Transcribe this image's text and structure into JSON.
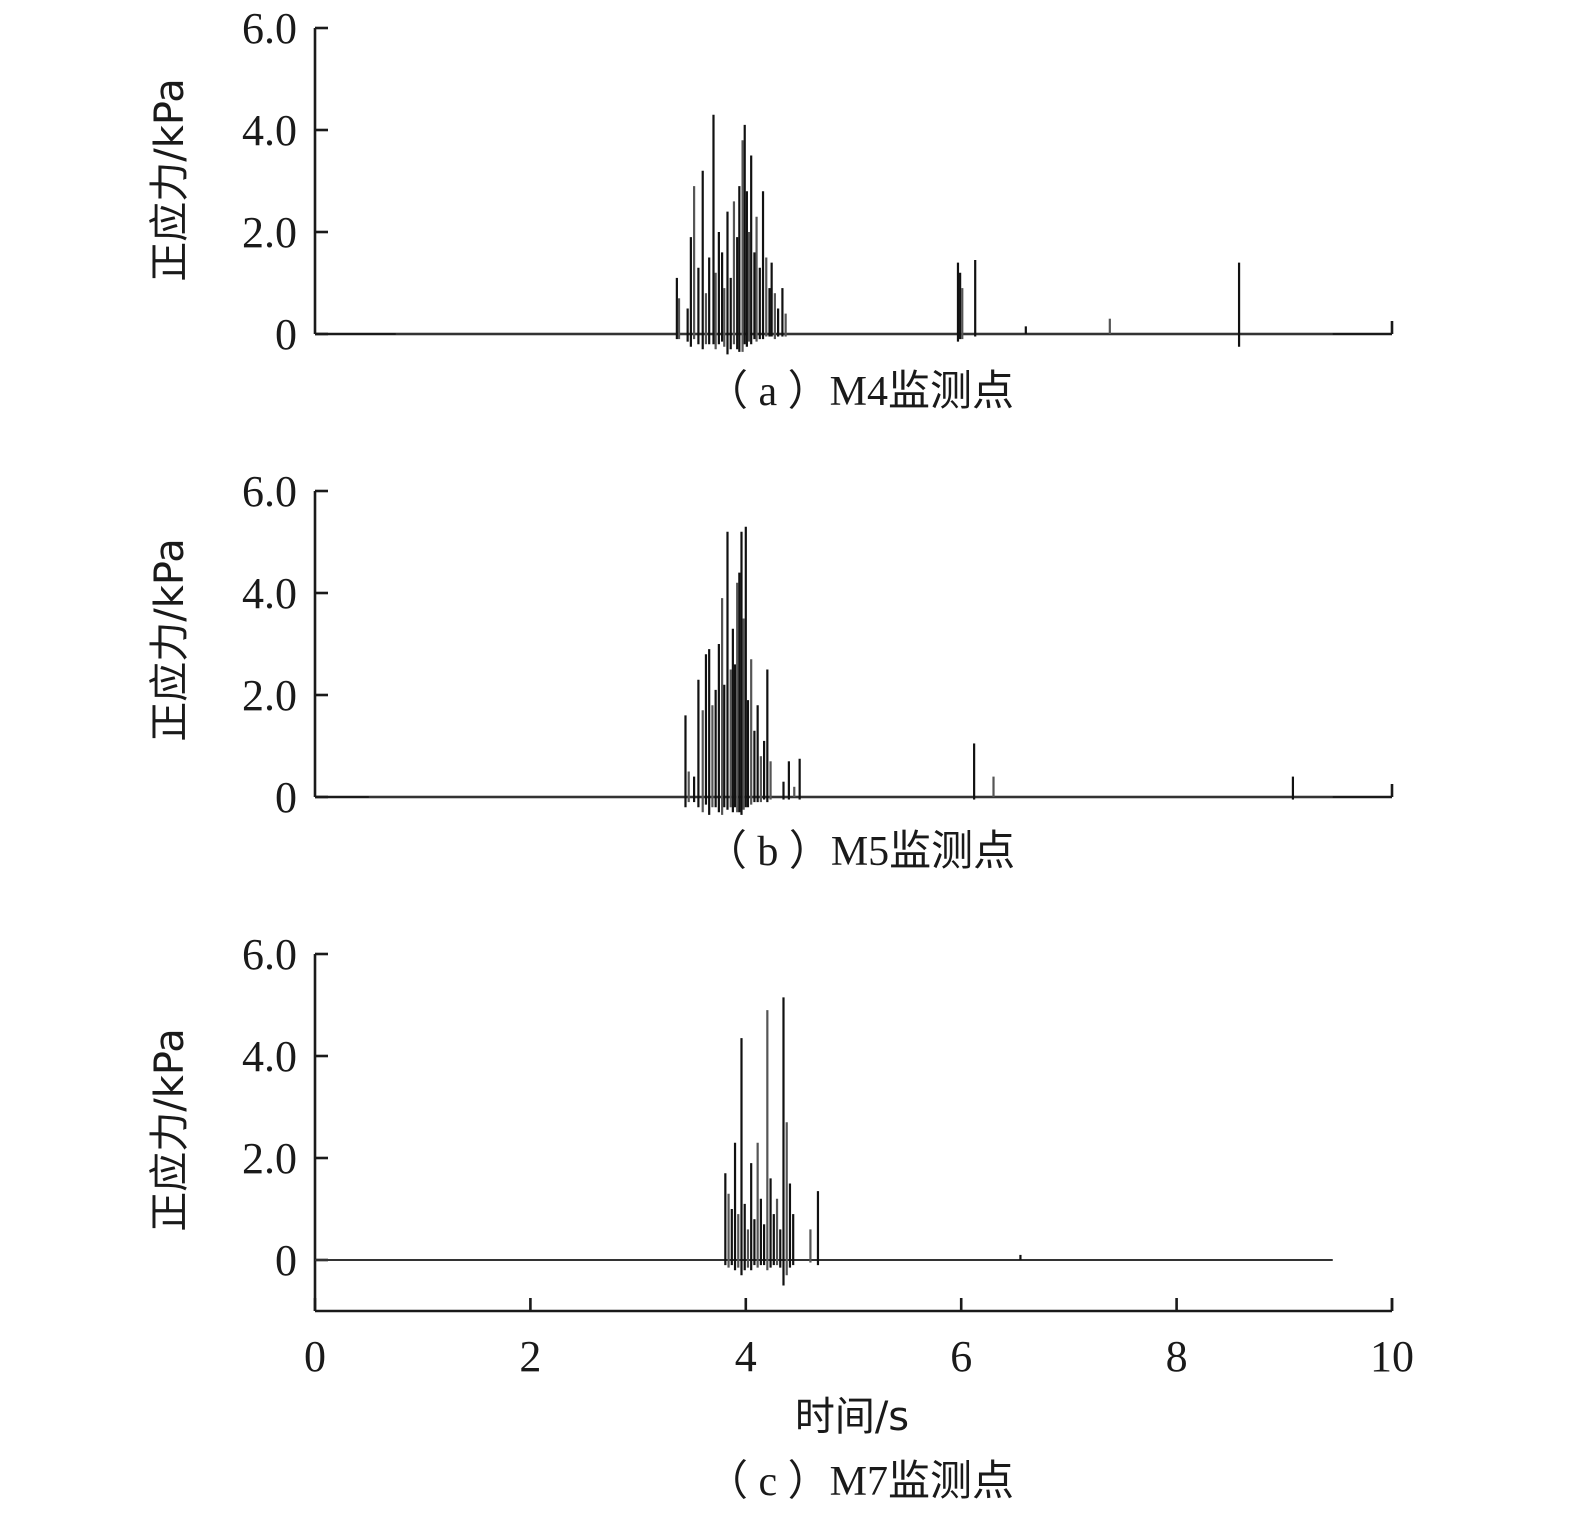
{
  "chart_data": [
    {
      "type": "line",
      "caption": "（ a ）M4监测点",
      "ylabel": "正应力/kPa",
      "xlabel": "",
      "xlim": [
        0,
        10
      ],
      "ylim": [
        0,
        6
      ],
      "yticks": [
        "0",
        "2.0",
        "4.0",
        "6.0"
      ],
      "xticks": [],
      "baseline_x": [
        0.75,
        9.45
      ],
      "grid": false,
      "series": [
        {
          "x": [
            3.36,
            3.38,
            3.46,
            3.49,
            3.52,
            3.56,
            3.6,
            3.63,
            3.66,
            3.7,
            3.72,
            3.75,
            3.78,
            3.8,
            3.83,
            3.86,
            3.89,
            3.92,
            3.94,
            3.97,
            3.99,
            4.01,
            4.03,
            4.05,
            4.08,
            4.1,
            4.13,
            4.16,
            4.19,
            4.22,
            4.24,
            4.27,
            4.3,
            4.34,
            4.37,
            5.97,
            5.99,
            6.01,
            6.13,
            6.6,
            7.38,
            8.58
          ],
          "y": [
            1.1,
            0.7,
            0.5,
            1.9,
            2.9,
            1.3,
            3.2,
            0.8,
            1.5,
            4.3,
            1.2,
            2.0,
            1.6,
            0.9,
            2.4,
            1.1,
            2.6,
            1.9,
            2.9,
            3.8,
            4.1,
            2.8,
            2.0,
            3.5,
            1.6,
            2.3,
            1.3,
            2.8,
            1.5,
            0.9,
            1.4,
            0.8,
            0.5,
            0.9,
            0.4,
            1.4,
            1.2,
            0.9,
            1.45,
            0.15,
            0.3,
            1.4
          ],
          "neg": [
            -0.1,
            -0.1,
            -0.15,
            -0.25,
            -0.1,
            -0.2,
            -0.3,
            -0.2,
            -0.2,
            -0.2,
            -0.3,
            -0.2,
            -0.15,
            -0.25,
            -0.4,
            -0.3,
            -0.2,
            -0.3,
            -0.35,
            -0.35,
            -0.2,
            -0.25,
            -0.15,
            -0.2,
            -0.1,
            -0.15,
            -0.1,
            -0.1,
            -0.05,
            -0.05,
            -0.05,
            -0.1,
            -0.05,
            -0.05,
            -0.05,
            -0.15,
            -0.1,
            -0.1,
            -0.05,
            0,
            0,
            -0.25
          ]
        }
      ]
    },
    {
      "type": "line",
      "caption": "（ b ）M5监测点",
      "ylabel": "正应力/kPa",
      "xlabel": "",
      "xlim": [
        0,
        10
      ],
      "ylim": [
        0,
        6
      ],
      "yticks": [
        "0",
        "2.0",
        "4.0",
        "6.0"
      ],
      "xticks": [],
      "baseline_x": [
        0.5,
        9.45
      ],
      "grid": false,
      "series": [
        {
          "x": [
            3.44,
            3.47,
            3.52,
            3.56,
            3.6,
            3.63,
            3.66,
            3.69,
            3.72,
            3.75,
            3.78,
            3.8,
            3.83,
            3.86,
            3.88,
            3.9,
            3.92,
            3.94,
            3.96,
            3.98,
            4.0,
            4.02,
            4.05,
            4.08,
            4.11,
            4.14,
            4.17,
            4.2,
            4.23,
            4.35,
            4.4,
            4.45,
            4.5,
            6.12,
            6.3,
            9.08
          ],
          "y": [
            1.6,
            0.5,
            0.4,
            2.3,
            1.7,
            2.8,
            2.9,
            1.8,
            2.1,
            3.0,
            3.9,
            2.2,
            5.2,
            2.5,
            3.3,
            2.6,
            4.2,
            4.4,
            5.2,
            3.5,
            5.3,
            1.9,
            2.7,
            1.3,
            1.8,
            0.8,
            1.1,
            2.5,
            0.7,
            0.3,
            0.7,
            0.2,
            0.75,
            1.05,
            0.4,
            0.4
          ],
          "neg": [
            -0.2,
            -0.1,
            -0.1,
            -0.2,
            -0.3,
            -0.15,
            -0.35,
            -0.2,
            -0.2,
            -0.3,
            -0.35,
            -0.2,
            -0.25,
            -0.2,
            -0.3,
            -0.2,
            -0.3,
            -0.3,
            -0.35,
            -0.25,
            -0.2,
            -0.2,
            -0.15,
            -0.1,
            -0.1,
            -0.1,
            -0.05,
            -0.1,
            -0.05,
            -0.05,
            -0.05,
            0,
            -0.05,
            -0.05,
            0,
            -0.05
          ]
        }
      ]
    },
    {
      "type": "line",
      "caption": "（ c ）M7监测点",
      "ylabel": "正应力/kPa",
      "xlabel": "时间/s",
      "xlim": [
        0,
        10
      ],
      "ylim": [
        -1,
        6
      ],
      "yticks": [
        "0",
        "2.0",
        "4.0",
        "6.0"
      ],
      "xticks": [
        "0",
        "2",
        "4",
        "6",
        "8",
        "10"
      ],
      "baseline_x": [
        0,
        9.45
      ],
      "grid": false,
      "series": [
        {
          "x": [
            3.81,
            3.84,
            3.87,
            3.9,
            3.93,
            3.96,
            3.99,
            4.02,
            4.05,
            4.08,
            4.11,
            4.14,
            4.17,
            4.2,
            4.23,
            4.26,
            4.29,
            4.32,
            4.35,
            4.38,
            4.41,
            4.44,
            4.6,
            4.67,
            6.55
          ],
          "y": [
            1.7,
            1.3,
            1.0,
            2.3,
            0.9,
            4.35,
            1.1,
            0.6,
            1.9,
            0.8,
            2.3,
            1.2,
            0.7,
            4.9,
            1.6,
            0.9,
            1.2,
            0.6,
            5.15,
            2.7,
            1.5,
            0.9,
            0.6,
            1.35,
            0.1
          ],
          "neg": [
            -0.1,
            -0.15,
            -0.1,
            -0.2,
            -0.15,
            -0.3,
            -0.2,
            -0.15,
            -0.2,
            -0.1,
            -0.15,
            -0.1,
            -0.1,
            -0.2,
            -0.15,
            -0.1,
            -0.1,
            -0.15,
            -0.5,
            -0.3,
            -0.15,
            -0.1,
            -0.05,
            -0.1,
            0
          ]
        }
      ]
    }
  ]
}
